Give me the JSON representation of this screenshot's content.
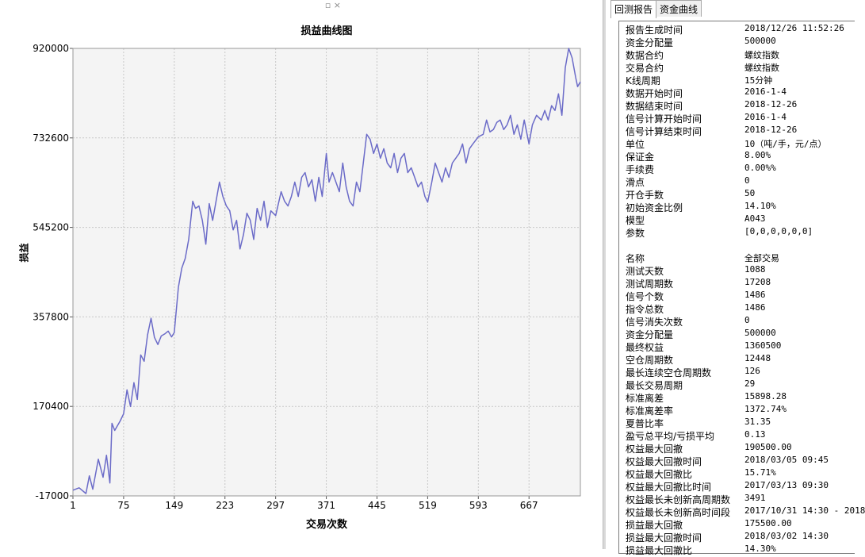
{
  "window": {
    "controls": "▫ ×"
  },
  "tabs": [
    {
      "label": "回测报告",
      "active": true
    },
    {
      "label": "资金曲线",
      "active": false
    }
  ],
  "report": [
    {
      "label": "报告生成时间",
      "value": "2018/12/26 11:52:26"
    },
    {
      "label": "资金分配量",
      "value": "500000"
    },
    {
      "label": "数据合约",
      "value": "螺纹指数"
    },
    {
      "label": "交易合约",
      "value": "螺纹指数"
    },
    {
      "label": "K线周期",
      "value": "15分钟"
    },
    {
      "label": "数据开始时间",
      "value": "2016-1-4"
    },
    {
      "label": "数据结束时间",
      "value": "2018-12-26"
    },
    {
      "label": "信号计算开始时间",
      "value": "2016-1-4"
    },
    {
      "label": "信号计算结束时间",
      "value": "2018-12-26"
    },
    {
      "label": "单位",
      "value": "10（吨/手，元/点）"
    },
    {
      "label": "保证金",
      "value": "8.00%"
    },
    {
      "label": "手续费",
      "value": "0.00%%"
    },
    {
      "label": "滑点",
      "value": "0"
    },
    {
      "label": "开仓手数",
      "value": "50"
    },
    {
      "label": "初始资金比例",
      "value": "14.10%"
    },
    {
      "label": "模型",
      "value": "A043"
    },
    {
      "label": "参数",
      "value": "[0,0,0,0,0,0]"
    },
    {
      "label": "",
      "value": ""
    },
    {
      "label": "名称",
      "value": "全部交易"
    },
    {
      "label": "测试天数",
      "value": "1088"
    },
    {
      "label": "测试周期数",
      "value": "17208"
    },
    {
      "label": "信号个数",
      "value": "1486"
    },
    {
      "label": "指令总数",
      "value": "1486"
    },
    {
      "label": "信号消失次数",
      "value": "0"
    },
    {
      "label": "资金分配量",
      "value": "500000"
    },
    {
      "label": "最终权益",
      "value": "1360500"
    },
    {
      "label": "空仓周期数",
      "value": "12448"
    },
    {
      "label": "最长连续空仓周期数",
      "value": "126"
    },
    {
      "label": "最长交易周期",
      "value": "29"
    },
    {
      "label": "标准离差",
      "value": "15898.28"
    },
    {
      "label": "标准离差率",
      "value": "1372.74%"
    },
    {
      "label": "夏普比率",
      "value": "31.35"
    },
    {
      "label": "盈亏总平均/亏损平均",
      "value": "0.13"
    },
    {
      "label": "权益最大回撤",
      "value": "190500.00"
    },
    {
      "label": "权益最大回撤时间",
      "value": "2018/03/05 09:45"
    },
    {
      "label": "权益最大回撤比",
      "value": "15.71%"
    },
    {
      "label": "权益最大回撤比时间",
      "value": "2017/03/13 09:30"
    },
    {
      "label": "权益最长未创新高周期数",
      "value": "3491"
    },
    {
      "label": "权益最长未创新高时间段",
      "value": "2017/10/31 14:30 - 2018"
    },
    {
      "label": "损益最大回撤",
      "value": "175500.00"
    },
    {
      "label": "损益最大回撤时间",
      "value": "2018/03/02 14:30"
    },
    {
      "label": "损益最大回撤比",
      "value": "14.30%"
    }
  ],
  "colors": {
    "line": "#6b6bc8",
    "plot_bg": "#f4f4f4",
    "grid": "#c8c8c8"
  },
  "chart_data": {
    "type": "line",
    "title": "损益曲线图",
    "xlabel": "交易次数",
    "ylabel": "损益",
    "xlim": [
      1,
      742
    ],
    "ylim": [
      -17000,
      920000
    ],
    "x_ticks": [
      1,
      75,
      149,
      223,
      297,
      371,
      445,
      519,
      593,
      667
    ],
    "y_ticks": [
      -17000,
      170400,
      357800,
      545200,
      732600,
      920000
    ],
    "grid": true,
    "series": [
      {
        "x": [
          1,
          10,
          20,
          25,
          30,
          38,
          45,
          50,
          55,
          58,
          62,
          70,
          75,
          80,
          85,
          90,
          95,
          100,
          105,
          110,
          115,
          120,
          125,
          130,
          135,
          140,
          145,
          149,
          155,
          160,
          165,
          170,
          176,
          180,
          185,
          190,
          195,
          200,
          205,
          210,
          215,
          220,
          225,
          230,
          235,
          240,
          245,
          250,
          255,
          260,
          265,
          270,
          275,
          280,
          285,
          290,
          297,
          305,
          310,
          315,
          320,
          325,
          330,
          335,
          340,
          345,
          350,
          355,
          360,
          365,
          371,
          375,
          380,
          385,
          390,
          395,
          400,
          405,
          410,
          415,
          420,
          425,
          430,
          435,
          440,
          445,
          450,
          455,
          460,
          465,
          470,
          475,
          480,
          485,
          490,
          495,
          500,
          505,
          510,
          515,
          519,
          525,
          530,
          535,
          540,
          545,
          550,
          555,
          560,
          565,
          570,
          575,
          580,
          585,
          593,
          600,
          605,
          610,
          615,
          620,
          625,
          630,
          635,
          640,
          645,
          650,
          655,
          660,
          667,
          672,
          678,
          685,
          690,
          695,
          700,
          705,
          710,
          715,
          720,
          725,
          730,
          735,
          738,
          742
        ],
        "y": [
          -5000,
          0,
          -12000,
          25000,
          -3000,
          60000,
          22000,
          68000,
          10000,
          135000,
          120000,
          140000,
          155000,
          205000,
          170000,
          220000,
          185000,
          278000,
          265000,
          320000,
          355000,
          315000,
          300000,
          318000,
          322000,
          328000,
          316000,
          325000,
          420000,
          460000,
          480000,
          520000,
          600000,
          585000,
          590000,
          560000,
          510000,
          595000,
          560000,
          600000,
          640000,
          610000,
          590000,
          580000,
          540000,
          560000,
          500000,
          530000,
          575000,
          560000,
          520000,
          585000,
          560000,
          600000,
          545000,
          580000,
          570000,
          620000,
          600000,
          590000,
          610000,
          640000,
          610000,
          650000,
          660000,
          630000,
          645000,
          600000,
          650000,
          610000,
          700000,
          640000,
          660000,
          640000,
          620000,
          680000,
          630000,
          600000,
          590000,
          640000,
          620000,
          680000,
          740000,
          730000,
          700000,
          720000,
          690000,
          710000,
          680000,
          670000,
          700000,
          660000,
          690000,
          700000,
          660000,
          670000,
          650000,
          630000,
          640000,
          610000,
          598000,
          640000,
          680000,
          660000,
          640000,
          670000,
          650000,
          680000,
          690000,
          700000,
          720000,
          680000,
          710000,
          720000,
          735000,
          740000,
          770000,
          745000,
          750000,
          765000,
          770000,
          750000,
          760000,
          780000,
          740000,
          760000,
          730000,
          770000,
          720000,
          760000,
          780000,
          770000,
          790000,
          770000,
          800000,
          790000,
          825000,
          780000,
          880000,
          920000,
          900000,
          860000,
          840000,
          850000
        ]
      }
    ]
  }
}
